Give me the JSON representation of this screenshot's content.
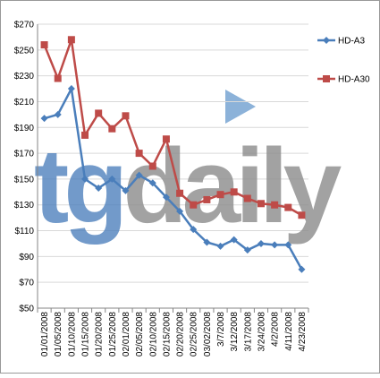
{
  "chart_data": {
    "type": "line",
    "watermark": [
      "tg",
      "daily"
    ],
    "categories": [
      "01/01/2008",
      "01/05/2008",
      "01/10/2008",
      "01/15/2008",
      "01/20/2008",
      "01/25/2008",
      "02/01/2008",
      "02/05/2008",
      "02/10/2008",
      "02/15/2008",
      "02/20/2008",
      "02/25/2008",
      "03/02/2008",
      "3/7/2008",
      "3/12/2008",
      "3/17/2008",
      "3/24/2008",
      "4/2/2008",
      "4/11/2008",
      "4/23/2008"
    ],
    "series": [
      {
        "name": "HD-A3",
        "color": "#4a7ebb",
        "marker": "diamond",
        "values": [
          197,
          200,
          220,
          150,
          143,
          150,
          141,
          153,
          147,
          136,
          125,
          111,
          101,
          98,
          103,
          95,
          100,
          99,
          99,
          80
        ]
      },
      {
        "name": "HD-A30",
        "color": "#be4b48",
        "marker": "square",
        "values": [
          254,
          228,
          258,
          184,
          201,
          189,
          199,
          170,
          160,
          181,
          139,
          130,
          134,
          138,
          140,
          135,
          131,
          130,
          128,
          122
        ]
      }
    ],
    "ylim": [
      50,
      270
    ],
    "yticks": [
      {
        "value": 50,
        "label": "$50"
      },
      {
        "value": 70,
        "label": "$70"
      },
      {
        "value": 90,
        "label": "$90"
      },
      {
        "value": 110,
        "label": "$110"
      },
      {
        "value": 130,
        "label": "$130"
      },
      {
        "value": 150,
        "label": "$150"
      },
      {
        "value": 170,
        "label": "$170"
      },
      {
        "value": 190,
        "label": "$190"
      },
      {
        "value": 210,
        "label": "$210"
      },
      {
        "value": 230,
        "label": "$230"
      },
      {
        "value": 250,
        "label": "$250"
      },
      {
        "value": 270,
        "label": "$270"
      }
    ],
    "grid": true,
    "legend": "right"
  }
}
